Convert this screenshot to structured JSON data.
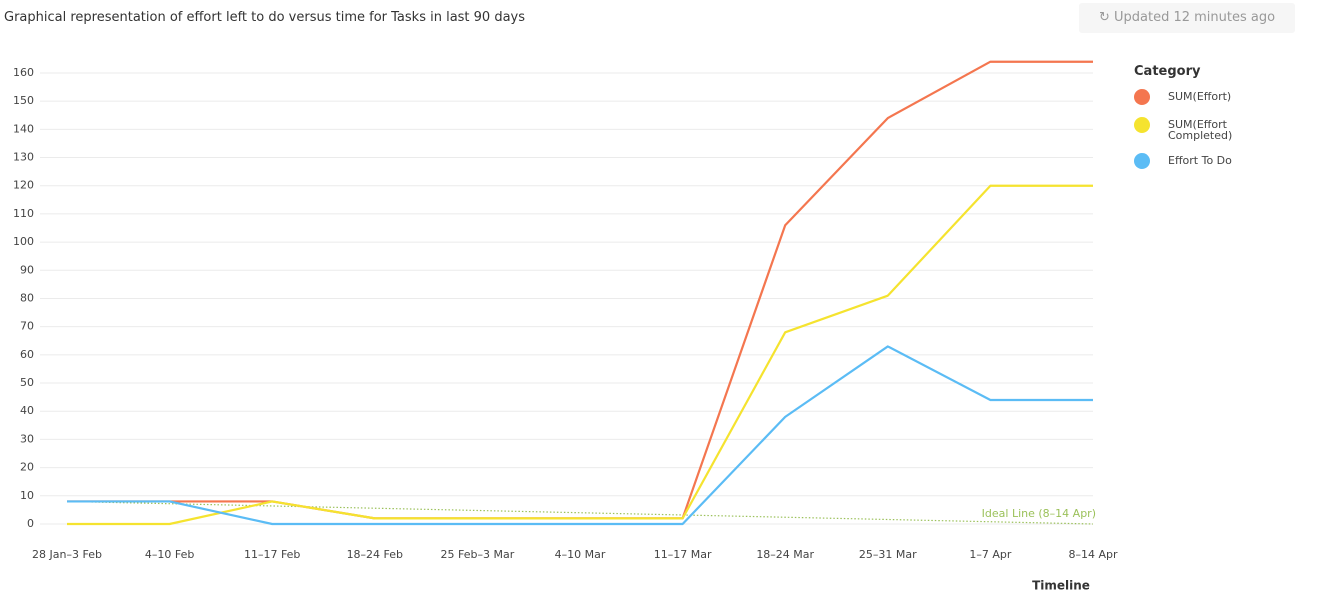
{
  "header": {
    "title": "Graphical representation of effort left to do versus time for Tasks in last 90 days",
    "updated": "Updated 12 minutes ago"
  },
  "chart_data": {
    "type": "line",
    "x_label": "Timeline",
    "legend_title": "Category",
    "categories": [
      "28 Jan–3 Feb",
      "4–10 Feb",
      "11–17 Feb",
      "18–24 Feb",
      "25 Feb–3 Mar",
      "4–10 Mar",
      "11–17 Mar",
      "18–24 Mar",
      "25–31 Mar",
      "1–7 Apr",
      "8–14 Apr"
    ],
    "series": [
      {
        "name": "SUM(Effort)",
        "color": "#f4764f",
        "values": [
          8,
          8,
          8,
          2,
          2,
          2,
          2,
          106,
          144,
          164,
          164
        ]
      },
      {
        "name": "SUM(Effort Completed)",
        "color": "#f5e32f",
        "values": [
          0,
          0,
          8,
          2,
          2,
          2,
          2,
          68,
          81,
          120,
          120
        ]
      },
      {
        "name": "Effort To Do",
        "color": "#5bbcf5",
        "values": [
          8,
          8,
          0,
          0,
          0,
          0,
          0,
          38,
          63,
          44,
          44
        ]
      }
    ],
    "ideal_line": {
      "label": "Ideal Line (8–14 Apr)",
      "color": "#9bc15a",
      "values": [
        8,
        7.2,
        6.4,
        5.6,
        4.8,
        4,
        3.2,
        2.4,
        1.6,
        0.8,
        0
      ]
    },
    "ylim": [
      0,
      170
    ],
    "yticks": [
      0,
      10,
      20,
      30,
      40,
      50,
      60,
      70,
      80,
      90,
      100,
      110,
      120,
      130,
      140,
      150,
      160
    ],
    "grid": true
  }
}
